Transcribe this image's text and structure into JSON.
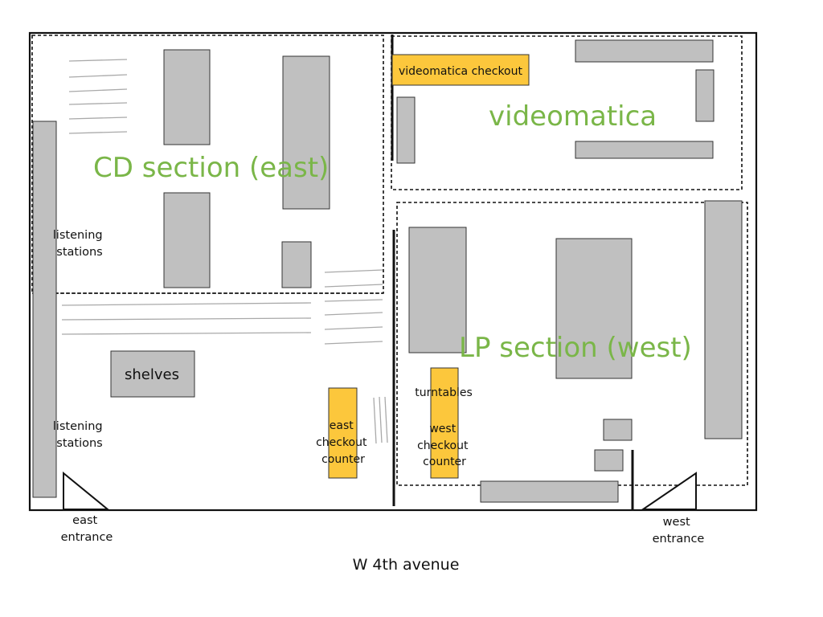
{
  "diagram": {
    "sections": {
      "cd": "CD section (east)",
      "videomatica": "videomatica",
      "lp": "LP section (west)"
    },
    "labels": {
      "videomatica_checkout": "videomatica checkout",
      "listening_stations_top": [
        "listening",
        "stations"
      ],
      "listening_stations_bottom": [
        "listening",
        "stations"
      ],
      "shelves": "shelves",
      "east_checkout": [
        "east",
        "checkout",
        "counter"
      ],
      "turntables": "turntables",
      "west_checkout": [
        "west",
        "checkout",
        "counter"
      ],
      "east_entrance": [
        "east",
        "entrance"
      ],
      "west_entrance": [
        "west",
        "entrance"
      ],
      "street": "W 4th avenue"
    },
    "colors": {
      "fixture": "#c0c0c0",
      "checkout": "#fcc73c",
      "section_text": "#7ab648"
    }
  }
}
